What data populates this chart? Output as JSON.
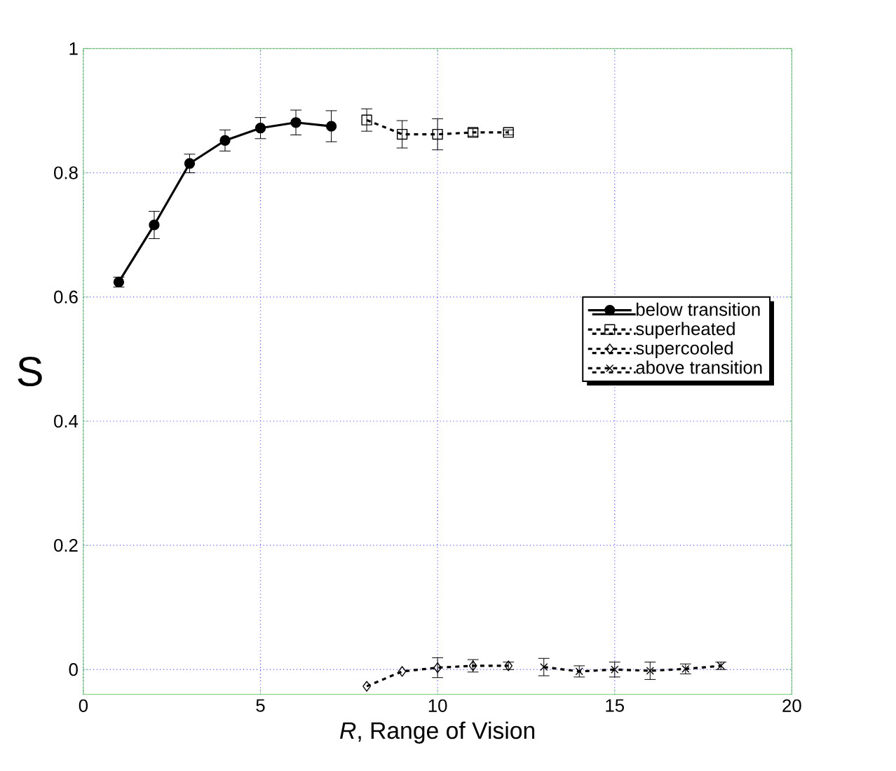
{
  "chart_data": {
    "type": "line",
    "xlabel": "*R*, Range of Vision",
    "ylabel": "S",
    "xlim": [
      0,
      20
    ],
    "ylim": [
      -0.04,
      1
    ],
    "xticks": [
      0,
      5,
      10,
      15,
      20
    ],
    "yticks": [
      0,
      0.2,
      0.4,
      0.6,
      0.8,
      1
    ],
    "grid": true,
    "legend": "right",
    "series": [
      {
        "name": "below transition",
        "color": "#000000",
        "marker": "circle",
        "line_style": "solid",
        "x": [
          1,
          2,
          3,
          4,
          5,
          6,
          7
        ],
        "values": [
          0.624,
          0.716,
          0.815,
          0.852,
          0.872,
          0.881,
          0.875
        ],
        "errors": [
          0.008,
          0.022,
          0.015,
          0.017,
          0.017,
          0.02,
          0.025
        ]
      },
      {
        "name": "superheated",
        "color": "#000000",
        "marker": "square",
        "line_style": "dashed",
        "x": [
          8,
          9,
          10,
          11,
          12
        ],
        "values": [
          0.885,
          0.862,
          0.862,
          0.865,
          0.865
        ],
        "errors": [
          0.018,
          0.022,
          0.025,
          0.006,
          0.004
        ]
      },
      {
        "name": "supercooled",
        "color": "#000000",
        "marker": "diamond",
        "line_style": "dashed",
        "x": [
          8,
          9,
          10,
          11,
          12
        ],
        "values": [
          -0.027,
          -0.003,
          0.003,
          0.006,
          0.006
        ],
        "errors": [
          null,
          null,
          0.016,
          0.01,
          0.006
        ]
      },
      {
        "name": "above transition",
        "color": "#000000",
        "marker": "cross",
        "line_style": "dashed",
        "x": [
          13,
          14,
          15,
          16,
          17,
          18
        ],
        "values": [
          0.004,
          -0.003,
          0,
          -0.002,
          0.001,
          0.006
        ],
        "errors": [
          0.014,
          0.009,
          0.012,
          0.014,
          0.008,
          0.006
        ]
      }
    ]
  }
}
